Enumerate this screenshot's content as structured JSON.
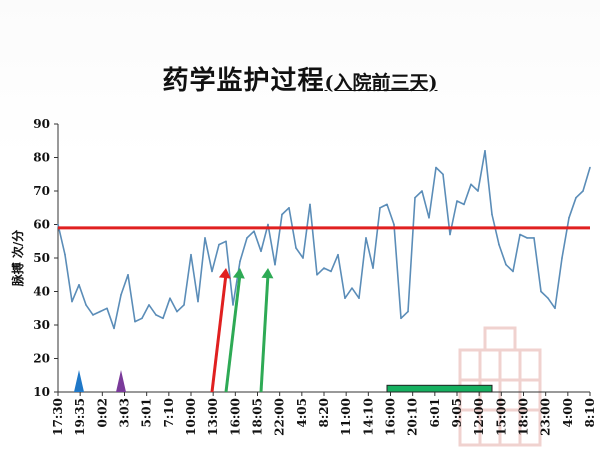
{
  "title": {
    "main": "药学监护过程",
    "sub": "(入院前三天)"
  },
  "chart_data": {
    "type": "line",
    "ylabel": "脉搏 次/分",
    "ylim": [
      10,
      90
    ],
    "yticks": [
      10,
      20,
      30,
      40,
      50,
      60,
      70,
      80,
      90
    ],
    "xtick_labels": [
      "17:30",
      "19:35",
      "0:02",
      "3:03",
      "5:01",
      "7:10",
      "10:00",
      "13:00",
      "16:00",
      "18:05",
      "22:00",
      "4:05",
      "8:20",
      "11:00",
      "14:10",
      "16:00",
      "20:10",
      "6:01",
      "9:05",
      "12:00",
      "15:00",
      "18:00",
      "23:00",
      "4:00",
      "8:10"
    ],
    "series": [
      {
        "color": "#5b8db8",
        "values": [
          60,
          51,
          37,
          42,
          36,
          33,
          34,
          35,
          29,
          39,
          45,
          31,
          32,
          36,
          33,
          32,
          38,
          34,
          36,
          51,
          37,
          56,
          46,
          54,
          55,
          36,
          49,
          56,
          58,
          52,
          60,
          48,
          63,
          65,
          53,
          50,
          66,
          45,
          47,
          46,
          51,
          38,
          41,
          38,
          56,
          47,
          65,
          66,
          60,
          32,
          34,
          68,
          70,
          62,
          77,
          75,
          57,
          67,
          66,
          72,
          70,
          82,
          63,
          54,
          48,
          46,
          57,
          56,
          56,
          40,
          38,
          35,
          50,
          62,
          68,
          70,
          77
        ]
      }
    ],
    "reference_line": {
      "value": 59,
      "color": "#e02020"
    },
    "markers": [
      {
        "shape": "triangle",
        "color": "#1f78c8",
        "index": 3
      },
      {
        "shape": "triangle",
        "color": "#7a3a9a",
        "index": 9
      },
      {
        "shape": "arrow",
        "color": "#e02020",
        "from": [
          22,
          10
        ],
        "to": [
          24,
          47
        ]
      },
      {
        "shape": "arrow",
        "color": "#2eaa55",
        "from": [
          24,
          10
        ],
        "to": [
          26,
          47
        ]
      },
      {
        "shape": "arrow",
        "color": "#2eaa55",
        "from": [
          29,
          10
        ],
        "to": [
          30,
          47
        ]
      }
    ],
    "bar": {
      "color": "#16b060",
      "from_index": 47,
      "to_index": 62,
      "y0": 10,
      "y1": 12
    },
    "grid": false
  }
}
